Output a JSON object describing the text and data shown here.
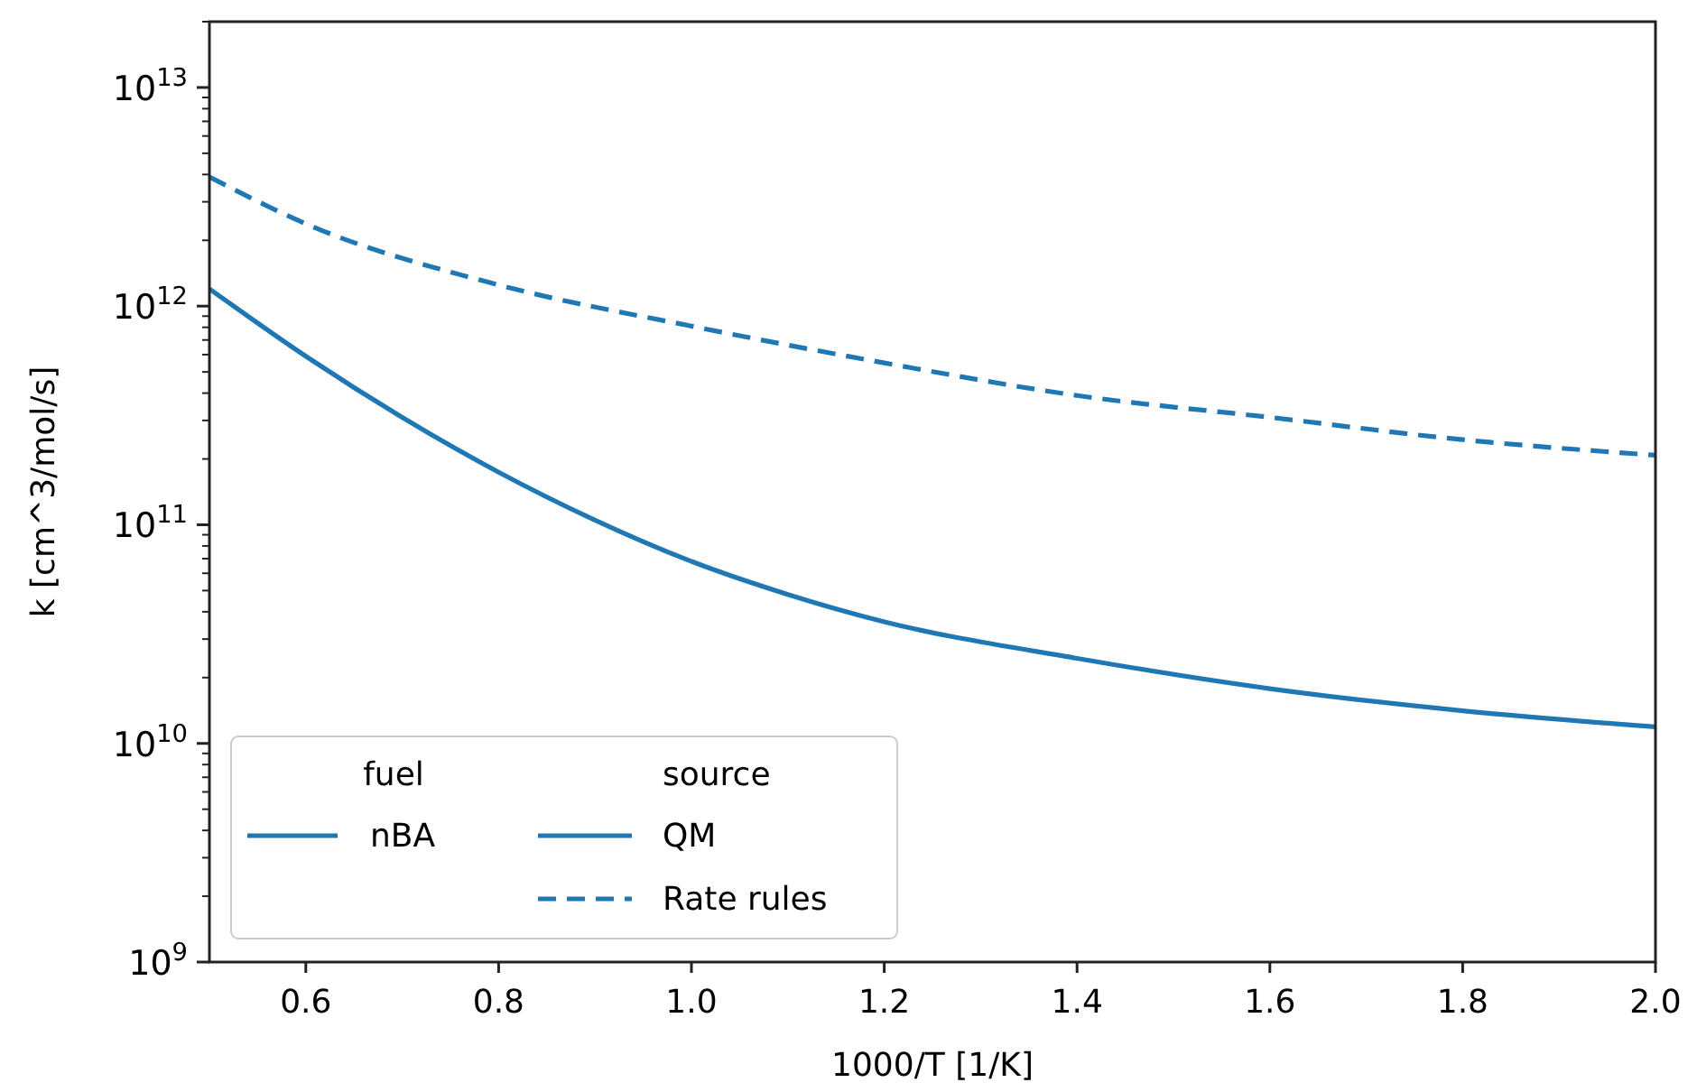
{
  "chart_data": {
    "type": "line",
    "xlabel": "1000/T [1/K]",
    "ylabel": "k [cm^3/mol/s]",
    "log": "y",
    "grid": false,
    "legend": "bottom left",
    "legend_title": "fuel",
    "annotations": [
      "nBA",
      "source"
    ],
    "xlim": [
      0.5,
      2.0
    ],
    "xticks": [
      {
        "value": 0.6,
        "label": "0.6"
      },
      {
        "value": 0.8,
        "label": "0.8"
      },
      {
        "value": 1.0,
        "label": "1.0"
      },
      {
        "value": 1.2,
        "label": "1.2"
      },
      {
        "value": 1.4,
        "label": "1.4"
      },
      {
        "value": 1.6,
        "label": "1.6"
      },
      {
        "value": 1.8,
        "label": "1.8"
      },
      {
        "value": 2.0,
        "label": "2.0"
      }
    ],
    "ylim": [
      1000000000.0,
      20000000000000.0
    ],
    "yticks": [
      {
        "value": 1000000000.0,
        "label": "10$^{9}$"
      },
      {
        "value": 2000000000.0,
        "label": null
      },
      {
        "value": 3000000000.0,
        "label": null
      },
      {
        "value": 4000000000.0,
        "label": null
      },
      {
        "value": 5000000000.0,
        "label": null
      },
      {
        "value": 6000000000.0,
        "label": null
      },
      {
        "value": 7000000000.0,
        "label": null
      },
      {
        "value": 8000000000.0,
        "label": null
      },
      {
        "value": 9000000000.0,
        "label": null
      },
      {
        "value": 10000000000.0,
        "label": "10$^{10}$"
      },
      {
        "value": 20000000000.0,
        "label": null
      },
      {
        "value": 30000000000.0,
        "label": null
      },
      {
        "value": 40000000000.0,
        "label": null
      },
      {
        "value": 50000000000.0,
        "label": null
      },
      {
        "value": 60000000000.0,
        "label": null
      },
      {
        "value": 70000000000.0,
        "label": null
      },
      {
        "value": 80000000000.0,
        "label": null
      },
      {
        "value": 90000000000.0,
        "label": null
      },
      {
        "value": 100000000000.0,
        "label": "10$^{11}$"
      },
      {
        "value": 200000000000.0,
        "label": null
      },
      {
        "value": 300000000000.0,
        "label": null
      },
      {
        "value": 400000000000.0,
        "label": null
      },
      {
        "value": 500000000000.0,
        "label": null
      },
      {
        "value": 600000000000.0,
        "label": null
      },
      {
        "value": 700000000000.0,
        "label": null
      },
      {
        "value": 800000000000.0,
        "label": null
      },
      {
        "value": 900000000000.0,
        "label": null
      },
      {
        "value": 1000000000000.0,
        "label": "10$^{12}$"
      },
      {
        "value": 2000000000000.0,
        "label": null
      },
      {
        "value": 3000000000000.0,
        "label": null
      },
      {
        "value": 4000000000000.0,
        "label": null
      },
      {
        "value": 5000000000000.0,
        "label": null
      },
      {
        "value": 6000000000000.0,
        "label": null
      },
      {
        "value": 7000000000000.0,
        "label": null
      },
      {
        "value": 8000000000000.0,
        "label": null
      },
      {
        "value": 9000000000000.0,
        "label": null
      },
      {
        "value": 10000000000000.0,
        "label": "10$^{13}$"
      },
      {
        "value": 20000000000000.0,
        "label": null
      }
    ],
    "x": [
      0.5,
      0.6,
      0.7,
      0.8,
      0.9,
      1.0,
      1.1,
      1.2,
      1.4,
      1.6,
      1.8,
      2.0
    ],
    "series": [
      {
        "name": "QM",
        "color": "#1f77b4",
        "line_style": "solid",
        "values": [
          1200000000000.0,
          590000000000.0,
          310000000000.0,
          174000000000.0,
          105000000000.0,
          68000000000.0,
          48000000000.0,
          36000000000.0,
          24500000000.0,
          17800000000.0,
          14100000000.0,
          11900000000.0
        ]
      },
      {
        "name": "Rate rules",
        "color": "#1f77b4",
        "line_style": "dashed",
        "x": [
          0.5,
          0.6,
          0.8,
          1.0,
          1.2,
          1.4,
          1.6,
          1.8,
          2.0
        ],
        "values": [
          3900000000000.0,
          2380000000000.0,
          1250000000000.0,
          810000000000.0,
          550000000000.0,
          390000000000.0,
          310000000000.0,
          245000000000.0,
          208000000000.0
        ]
      }
    ]
  }
}
